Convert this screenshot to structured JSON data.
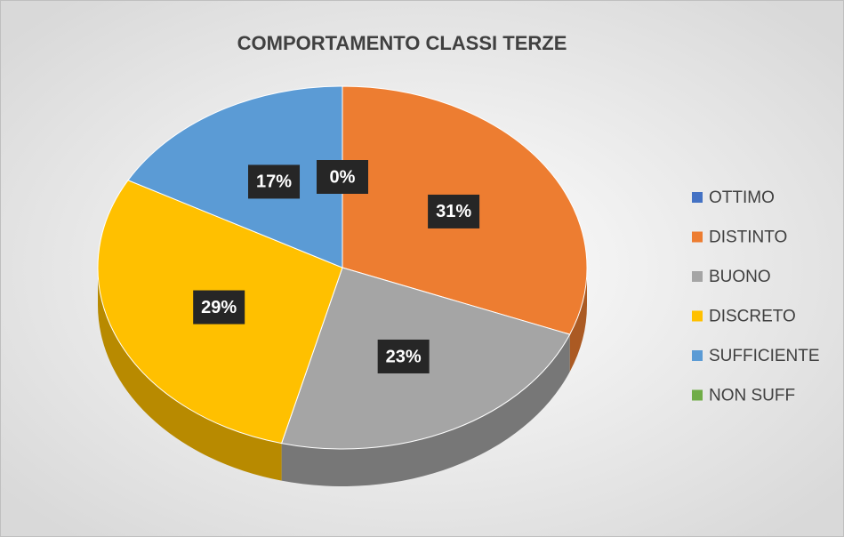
{
  "chart_data": {
    "type": "pie",
    "title": "COMPORTAMENTO CLASSI TERZE",
    "categories": [
      "OTTIMO",
      "DISTINTO",
      "BUONO",
      "DISCRETO",
      "SUFFICIENTE",
      "NON SUFF"
    ],
    "values": [
      0,
      31,
      23,
      29,
      17,
      0
    ],
    "value_labels": [
      "0%",
      "31%",
      "23%",
      "29%",
      "17%",
      null
    ],
    "colors": [
      "#4472c4",
      "#ed7d31",
      "#a5a5a5",
      "#ffc000",
      "#5b9bd5",
      "#70ad47"
    ],
    "legend": "right"
  }
}
